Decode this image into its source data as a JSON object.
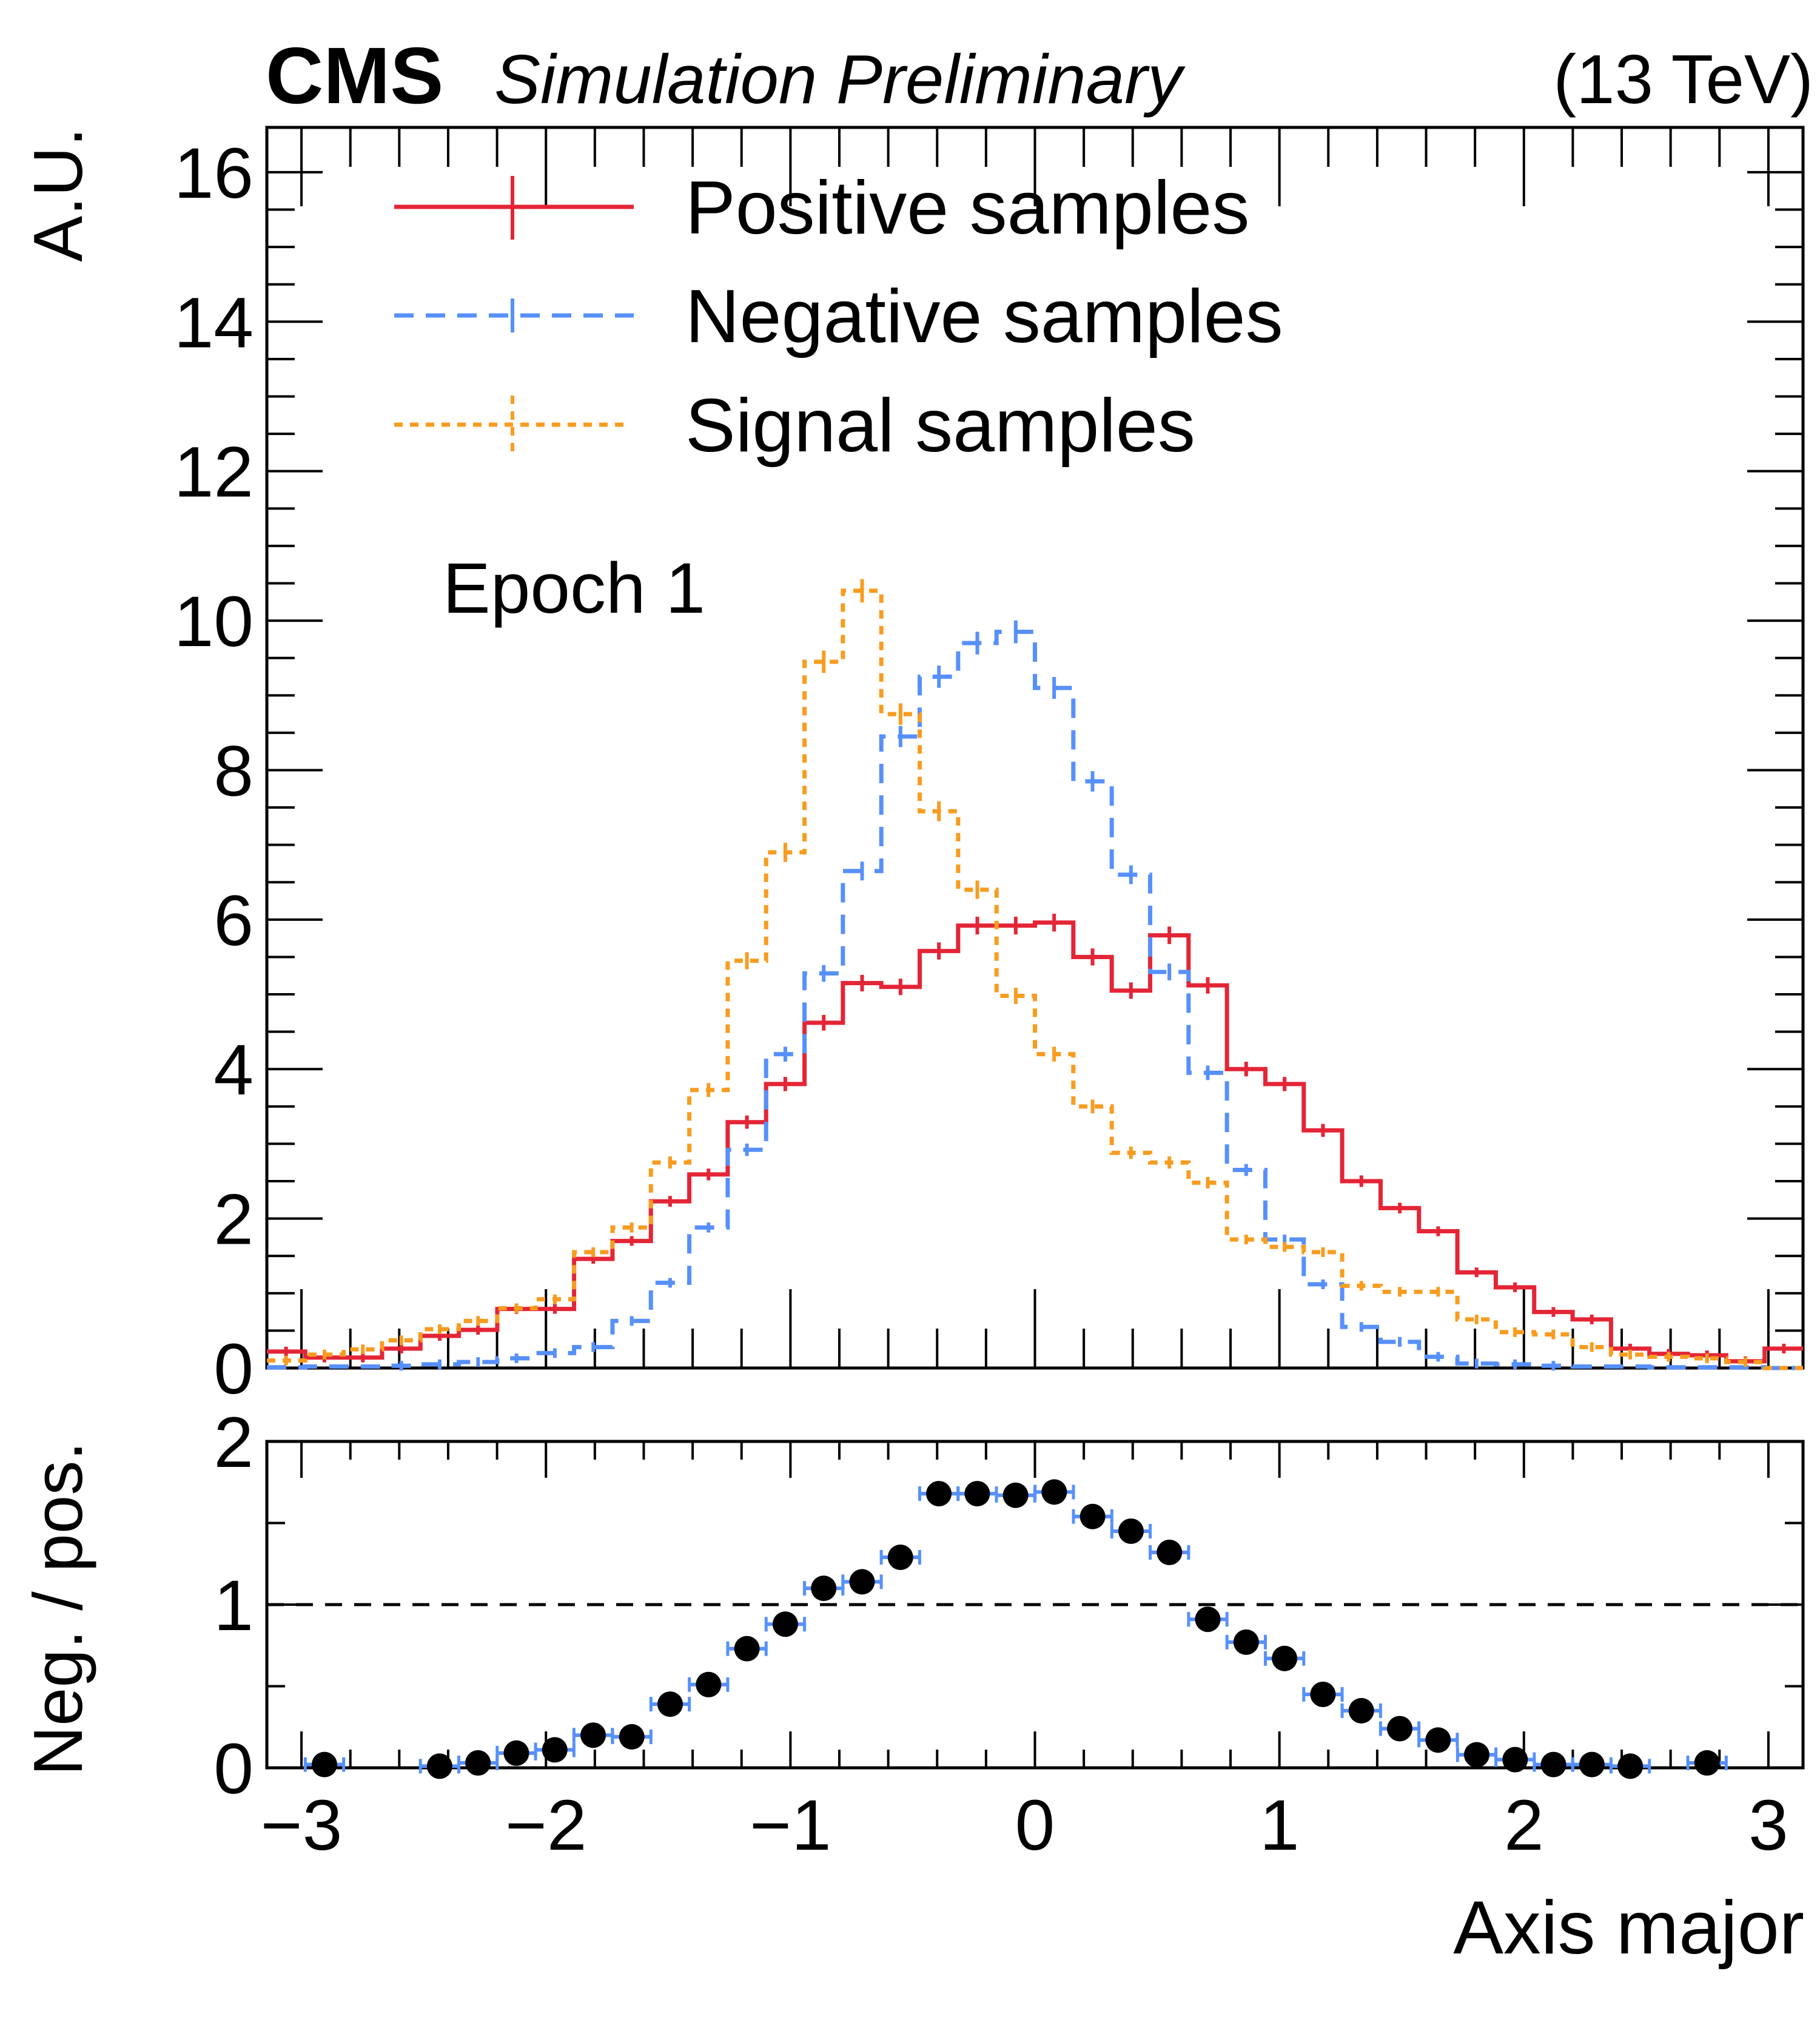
{
  "header": {
    "experiment": "CMS",
    "status": "Simulation Preliminary",
    "energy": "(13 TeV)"
  },
  "annotation": "Epoch 1",
  "colors": {
    "positive": "#e42536",
    "negative": "#5790fc",
    "signal": "#f89c20",
    "ratio_points": "#000000",
    "ratio_errors": "#5790fc"
  },
  "chart_data": [
    {
      "type": "line",
      "subtype": "step-histogram",
      "title": "",
      "xlabel": "",
      "ylabel": "A.U.",
      "xlim": [
        -3.1416,
        3.1416
      ],
      "ylim": [
        0,
        16.6
      ],
      "yticks": [
        0,
        2,
        4,
        6,
        8,
        10,
        12,
        14,
        16
      ],
      "ytick_labels": [
        "0",
        "2",
        "4",
        "6",
        "8",
        "10",
        "12",
        "14",
        "16"
      ],
      "n_bins": 40,
      "legend_placement": "top-left",
      "legend": [
        "Positive samples",
        "Negative samples",
        "Signal samples"
      ],
      "series": [
        {
          "name": "Positive samples",
          "style": "solid",
          "values": [
            0.22,
            0.14,
            0.14,
            0.26,
            0.43,
            0.51,
            0.79,
            0.79,
            1.46,
            1.7,
            2.23,
            2.59,
            3.29,
            3.8,
            4.62,
            5.15,
            5.1,
            5.58,
            5.92,
            5.92,
            5.96,
            5.5,
            5.05,
            5.79,
            5.12,
            4.0,
            3.8,
            3.18,
            2.5,
            2.14,
            1.83,
            1.28,
            1.08,
            0.75,
            0.65,
            0.26,
            0.19,
            0.17,
            0.09,
            0.26
          ]
        },
        {
          "name": "Negative samples",
          "style": "dashed",
          "values": [
            0.01,
            0.02,
            0.02,
            0.03,
            0.05,
            0.08,
            0.13,
            0.2,
            0.28,
            0.63,
            1.14,
            1.88,
            2.92,
            4.2,
            5.28,
            6.65,
            8.45,
            9.25,
            9.7,
            9.85,
            9.1,
            7.85,
            6.6,
            5.3,
            3.95,
            2.65,
            1.72,
            1.12,
            0.55,
            0.35,
            0.15,
            0.06,
            0.05,
            0.03,
            0.02,
            0.02,
            0.01,
            0.01,
            0.01,
            0.0
          ]
        },
        {
          "name": "Signal samples",
          "style": "dotted",
          "values": [
            0.1,
            0.18,
            0.25,
            0.37,
            0.52,
            0.63,
            0.8,
            0.92,
            1.55,
            1.88,
            2.75,
            3.72,
            5.45,
            6.9,
            9.45,
            10.4,
            8.75,
            7.45,
            6.4,
            4.98,
            4.2,
            3.5,
            2.88,
            2.75,
            2.48,
            1.72,
            1.62,
            1.55,
            1.1,
            1.02,
            1.02,
            0.65,
            0.48,
            0.45,
            0.28,
            0.18,
            0.15,
            0.13,
            0.08,
            0.0
          ]
        }
      ]
    },
    {
      "type": "scatter",
      "title": "",
      "xlabel": "Axis major",
      "ylabel": "Neg. / pos.",
      "xlim": [
        -3.1416,
        3.1416
      ],
      "ylim": [
        0,
        2
      ],
      "yticks": [
        0,
        1,
        2
      ],
      "ytick_labels": [
        "0",
        "1",
        "2"
      ],
      "xticks": [
        -3,
        -2,
        -1,
        0,
        1,
        2,
        3
      ],
      "xtick_labels": [
        "−3",
        "−2",
        "−1",
        "0",
        "1",
        "2",
        "3"
      ],
      "reference_line": 1,
      "x": [
        -2.906,
        -2.435,
        -2.278,
        -2.121,
        -1.964,
        -1.807,
        -1.649,
        -1.492,
        -1.335,
        -1.178,
        -1.021,
        -0.864,
        -0.707,
        -0.55,
        -0.393,
        -0.236,
        -0.079,
        0.079,
        0.236,
        0.393,
        0.55,
        0.707,
        0.864,
        1.021,
        1.178,
        1.335,
        1.492,
        1.649,
        1.807,
        1.964,
        2.121,
        2.278,
        2.435,
        2.749
      ],
      "values": [
        0.02,
        0.01,
        0.03,
        0.09,
        0.11,
        0.2,
        0.19,
        0.39,
        0.51,
        0.73,
        0.88,
        1.1,
        1.14,
        1.29,
        1.68,
        1.68,
        1.67,
        1.69,
        1.54,
        1.45,
        1.32,
        0.91,
        0.77,
        0.67,
        0.45,
        0.35,
        0.24,
        0.17,
        0.08,
        0.05,
        0.02,
        0.02,
        0.01,
        0.03
      ],
      "x_error_halfwidth": 0.0785
    }
  ]
}
